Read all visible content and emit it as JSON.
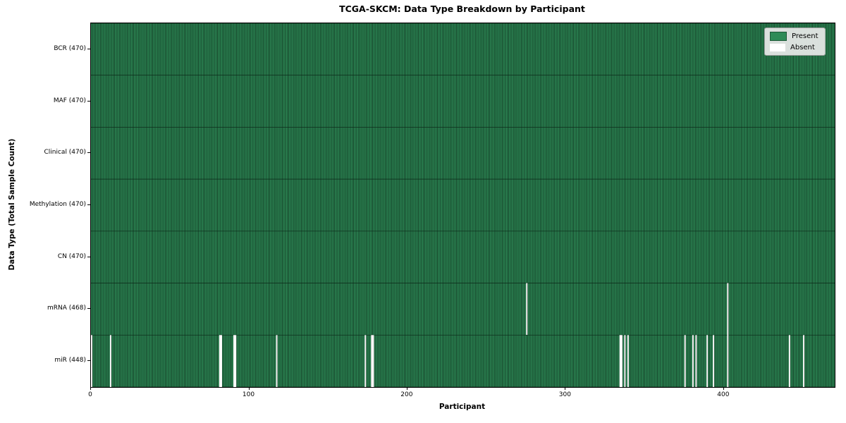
{
  "chart_data": {
    "type": "heatmap",
    "title": "TCGA-SKCM: Data Type Breakdown by Participant",
    "xlabel": "Participant",
    "ylabel": "Data Type (Total Sample Count)",
    "n_participants": 470,
    "x_ticks": [
      0,
      100,
      200,
      300,
      400
    ],
    "x_range": [
      0,
      470
    ],
    "grid": false,
    "legend_position": "upper right",
    "legend": [
      {
        "label": "Present",
        "color": "#2e8b57"
      },
      {
        "label": "Absent",
        "color": "#ffffff"
      }
    ],
    "rows": [
      {
        "label": "BCR (470)",
        "name": "BCR",
        "present_count": 470,
        "absent_participants": []
      },
      {
        "label": "MAF (470)",
        "name": "MAF",
        "present_count": 470,
        "absent_participants": []
      },
      {
        "label": "Clinical (470)",
        "name": "Clinical",
        "present_count": 470,
        "absent_participants": []
      },
      {
        "label": "Methylation (470)",
        "name": "Methylation",
        "present_count": 470,
        "absent_participants": []
      },
      {
        "label": "CN (470)",
        "name": "CN",
        "present_count": 470,
        "absent_participants": []
      },
      {
        "label": "mRNA (468)",
        "name": "mRNA",
        "present_count": 468,
        "absent_participants": [
          275,
          402
        ]
      },
      {
        "label": "miR (448)",
        "name": "miR",
        "present_count": 448,
        "absent_participants": [
          0,
          12,
          81,
          82,
          90,
          91,
          117,
          173,
          177,
          178,
          334,
          335,
          337,
          339,
          375,
          380,
          382,
          389,
          393,
          402,
          441,
          450
        ]
      }
    ],
    "colors": {
      "present": "#2e8b57",
      "absent": "#ffffff",
      "cell_edge": "#0d2a1a",
      "background": "#ffffff",
      "spine": "#000000"
    }
  }
}
